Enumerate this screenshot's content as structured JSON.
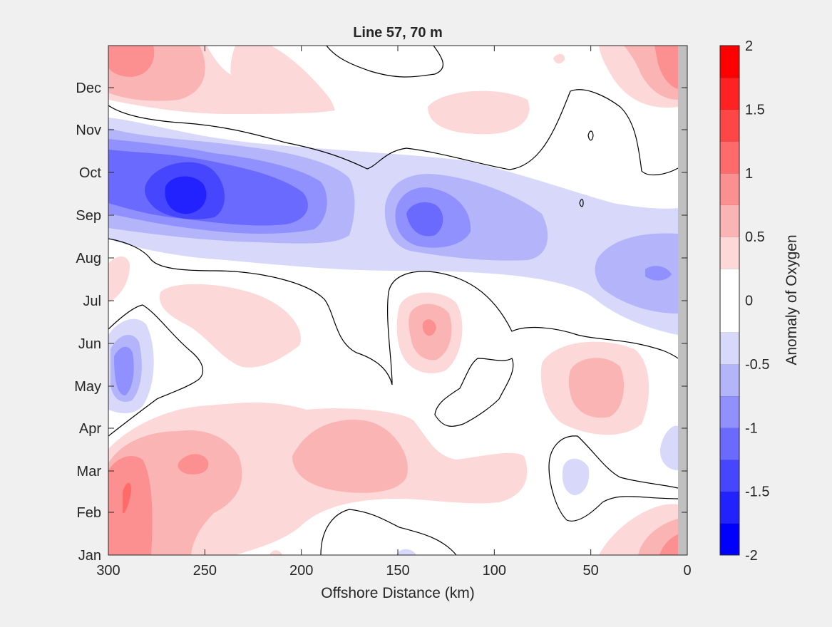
{
  "chart_data": {
    "type": "contour",
    "title": "Line 57, 70 m",
    "xlabel": "Offshore Distance (km)",
    "ylabel": "",
    "xlim": [
      300,
      0
    ],
    "x_direction": "reversed",
    "x_ticks": [
      300,
      250,
      200,
      150,
      100,
      50,
      0
    ],
    "x_tick_labels": [
      "300",
      "250",
      "200",
      "150",
      "100",
      "50",
      "0"
    ],
    "y_tick_labels": [
      "Jan",
      "Feb",
      "Mar",
      "Apr",
      "May",
      "Jun",
      "Jul",
      "Aug",
      "Sep",
      "Oct",
      "Nov",
      "Dec"
    ],
    "colorbar": {
      "label": "Anomaly of Oxygen",
      "range": [
        -2,
        2
      ],
      "tick_values": [
        -2,
        -1.5,
        -1,
        -0.5,
        0,
        0.5,
        1,
        1.5,
        2
      ],
      "tick_labels": [
        "-2",
        "-1.5",
        "-1",
        "-0.5",
        "0",
        "0.5",
        "1",
        "1.5",
        "2"
      ],
      "levels": [
        -2,
        -1.75,
        -1.5,
        -1.25,
        -1,
        -0.75,
        -0.5,
        -0.25,
        0,
        0.25,
        0.5,
        0.75,
        1,
        1.25,
        1.5,
        1.75,
        2
      ],
      "colors": [
        "#0000ff",
        "#2222ff",
        "#4646ff",
        "#6a6aff",
        "#9090ff",
        "#b4b4fb",
        "#d8d8fa",
        "#ffffff",
        "#ffffff",
        "#fcd8d8",
        "#fbb4b4",
        "#fc9090",
        "#ff6a6a",
        "#ff4646",
        "#ff2222",
        "#ff0000"
      ]
    },
    "zero_contour": true,
    "features": [
      {
        "name": "negative band",
        "x": 270,
        "month": "Sep-Oct",
        "value": -1.9
      },
      {
        "name": "negative band",
        "x": 135,
        "month": "Sep",
        "value": -1.3
      },
      {
        "name": "negative patch",
        "x": 15,
        "month": "Aug",
        "value": -1.0
      },
      {
        "name": "negative patch",
        "x": 290,
        "month": "May-Jun",
        "value": -1.2
      },
      {
        "name": "positive patch",
        "x": 285,
        "month": "Feb-Mar",
        "value": 1.0
      },
      {
        "name": "positive patch",
        "x": 260,
        "month": "Mar",
        "value": 0.9
      },
      {
        "name": "positive patch",
        "x": 135,
        "month": "Jun",
        "value": 0.9
      },
      {
        "name": "positive patch",
        "x": 40,
        "month": "May",
        "value": 0.6
      },
      {
        "name": "positive patch",
        "x": 10,
        "month": "Jan",
        "value": 1.0
      },
      {
        "name": "positive patch",
        "x": 10,
        "month": "Dec",
        "value": 0.9
      }
    ]
  }
}
